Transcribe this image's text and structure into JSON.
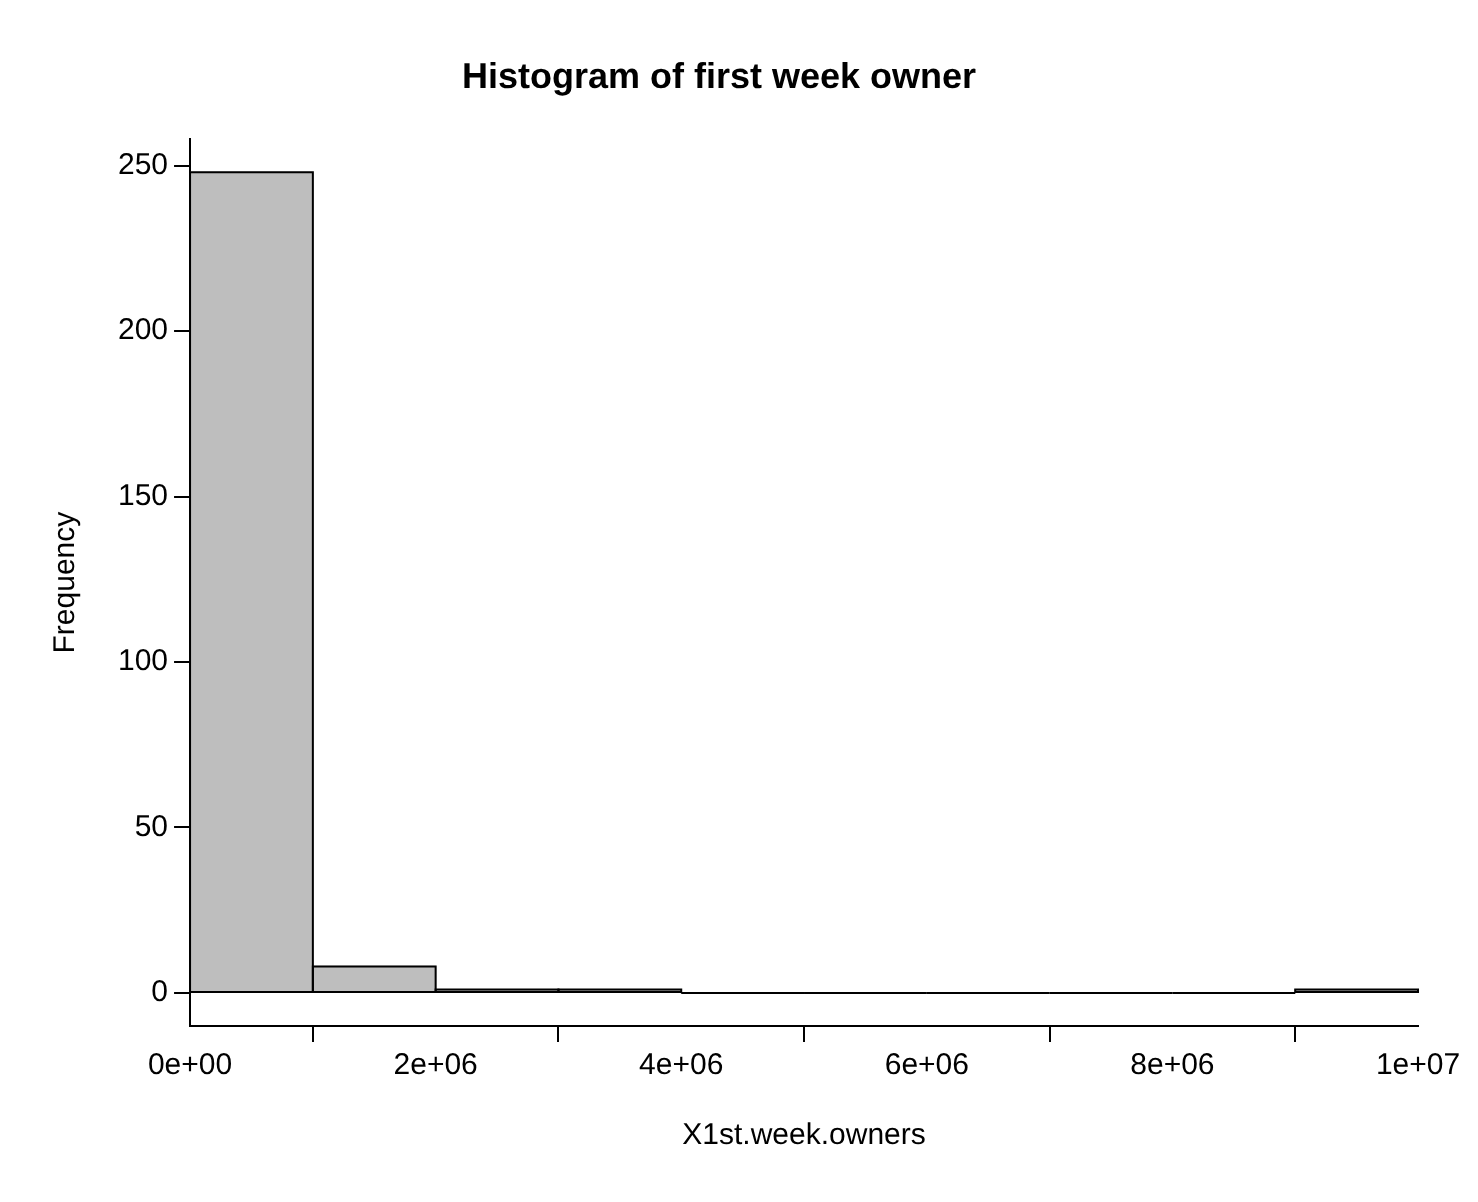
{
  "chart_data": {
    "type": "histogram",
    "title": "Histogram of first week owner",
    "xlabel": "X1st.week.owners",
    "ylabel": "Frequency",
    "bins": [
      0,
      1000000,
      2000000,
      3000000,
      4000000,
      5000000,
      6000000,
      7000000,
      8000000,
      9000000,
      10000000
    ],
    "values": [
      248,
      8,
      1,
      1,
      0,
      0,
      0,
      0,
      0,
      1
    ],
    "color": "#bebebe",
    "xlim": [
      0,
      10000000
    ],
    "xticks": [
      {
        "value": 0,
        "label": "0e+00"
      },
      {
        "value": 2000000,
        "label": "2e+06"
      },
      {
        "value": 4000000,
        "label": "4e+06"
      },
      {
        "value": 6000000,
        "label": "6e+06"
      },
      {
        "value": 8000000,
        "label": "8e+06"
      },
      {
        "value": 10000000,
        "label": "1e+07"
      }
    ],
    "ylim": [
      -10,
      258
    ],
    "yticks": [
      0,
      50,
      100,
      150,
      200,
      250
    ],
    "grid": false,
    "legend": false
  }
}
